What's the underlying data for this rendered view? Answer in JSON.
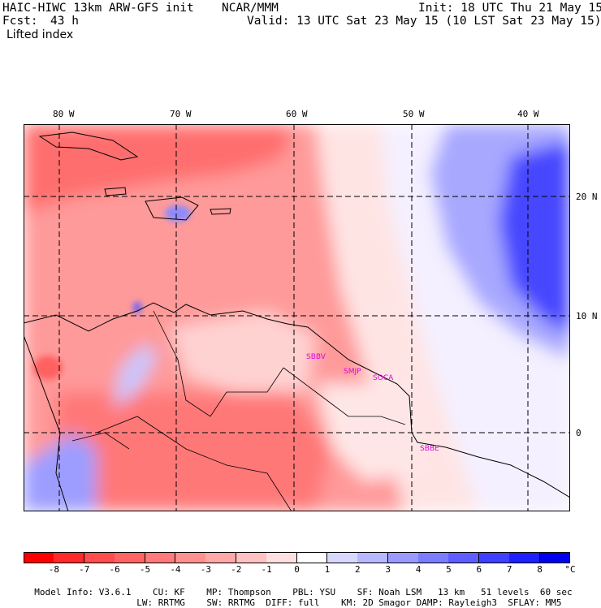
{
  "header": {
    "model": "HAIC-HIWC 13km ARW-GFS init",
    "org": "NCAR/MMM",
    "init": "Init: 18 UTC Thu 21 May 15",
    "fcst_label": "Fcst:",
    "fcst_value": "43 h",
    "valid": "Valid: 13 UTC Sat 23 May 15 (10 LST Sat 23 May 15)",
    "field": "Lifted index"
  },
  "map": {
    "lon_labels": [
      "80 W",
      "70 W",
      "60 W",
      "50 W",
      "40 W"
    ],
    "lat_labels": [
      "20 N",
      "10 N",
      "0"
    ],
    "stations": [
      "SBBV",
      "SMJP",
      "SOCA",
      "SBBE"
    ],
    "grid_color": "#000000"
  },
  "colorbar": {
    "labels": [
      "-8",
      "-7",
      "-6",
      "-5",
      "-4",
      "-3",
      "-2",
      "-1",
      "0",
      "1",
      "2",
      "3",
      "4",
      "5",
      "6",
      "7",
      "8"
    ],
    "unit": "°C",
    "colors": [
      "#ff0000",
      "#ff2b2b",
      "#ff4c4c",
      "#ff6464",
      "#ff7a7a",
      "#ff9191",
      "#ffa8a8",
      "#ffc2c2",
      "#ffe0e0",
      "#ffffff",
      "#d8d8ff",
      "#b8b8ff",
      "#9a9aff",
      "#7c7cff",
      "#5e5eff",
      "#4040ff",
      "#2020ff",
      "#0000ee"
    ]
  },
  "footer": {
    "line1": [
      "Model Info: V3.6.1",
      "CU: KF",
      "MP: Thompson",
      "PBL: YSU",
      "SF: Noah LSM",
      "13 km",
      "51 levels",
      "60 sec"
    ],
    "line2": [
      "LW: RRTMG",
      "SW: RRTMG",
      "DIFF: full",
      "KM: 2D Smagor",
      "DAMP: Rayleigh3",
      "SFLAY: MM5"
    ]
  }
}
